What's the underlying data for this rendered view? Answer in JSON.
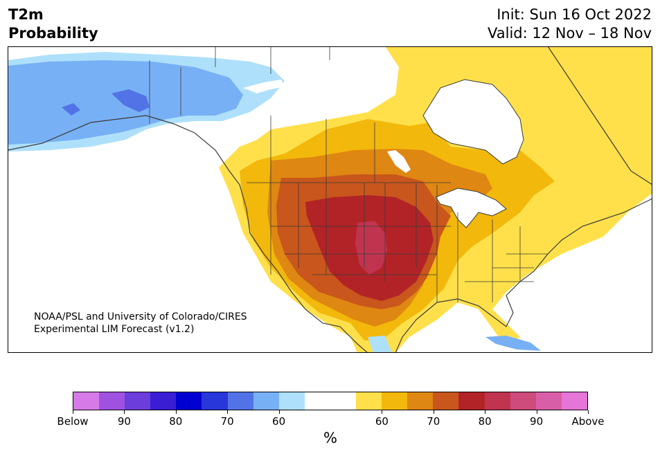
{
  "header": {
    "title_line1": "T2m",
    "title_line2": "Probability",
    "init": "Init: Sun 16 Oct 2022",
    "valid": "Valid: 12 Nov – 18 Nov"
  },
  "credit": {
    "line1": "NOAA/PSL and University of Colorado/CIRES",
    "line2": "Experimental LIM Forecast (v1.2)"
  },
  "colorbar": {
    "colors": [
      "#d67ae8",
      "#9f52e0",
      "#6b3ddb",
      "#3a1ed4",
      "#0000d0",
      "#2837d9",
      "#5273e6",
      "#78b0f5",
      "#aee0fb",
      "#ffffff",
      "#ffffff",
      "#ffe04b",
      "#f2b80b",
      "#de8712",
      "#c9561c",
      "#b22327",
      "#c03450",
      "#cd4c7c",
      "#d95ea8",
      "#e575d6"
    ],
    "labels": [
      "Below",
      "90",
      "80",
      "70",
      "60",
      "60",
      "70",
      "80",
      "90",
      "Above"
    ],
    "unit": "%"
  },
  "map_colors": {
    "below_60": "#aee0fb",
    "below_70": "#78b0f5",
    "below_80": "#5273e6",
    "above_60": "#ffe04b",
    "above_70": "#f2b80b",
    "above_80": "#de8712",
    "above_90": "#c9561c",
    "above_top": "#b22327",
    "above_peak": "#c03450",
    "border": "#3a3a3a"
  }
}
